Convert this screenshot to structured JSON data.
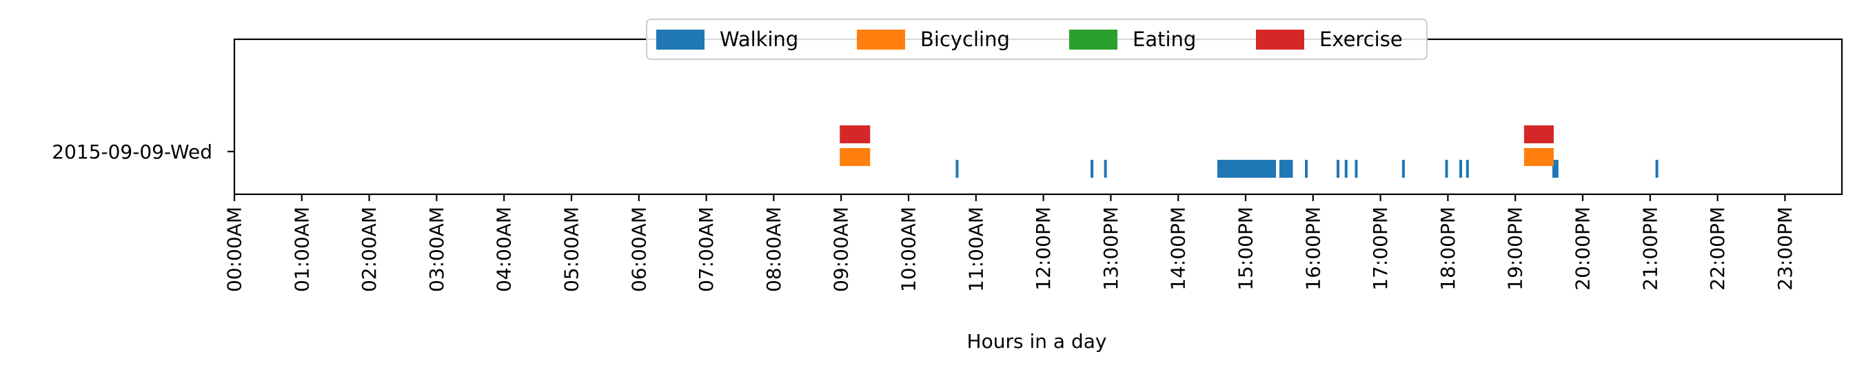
{
  "chart_data": {
    "type": "timeline",
    "title": "",
    "xlabel": "Hours in a day",
    "ylabel": "",
    "xlim": [
      0,
      24
    ],
    "categories": [
      "2015-09-09-Wed"
    ],
    "x_tick_labels": [
      "00:00AM",
      "01:00AM",
      "02:00AM",
      "03:00AM",
      "04:00AM",
      "05:00AM",
      "06:00AM",
      "07:00AM",
      "08:00AM",
      "09:00AM",
      "10:00AM",
      "11:00AM",
      "12:00PM",
      "13:00PM",
      "14:00PM",
      "15:00PM",
      "16:00PM",
      "17:00PM",
      "18:00PM",
      "19:00PM",
      "20:00PM",
      "21:00PM",
      "22:00PM",
      "23:00PM"
    ],
    "legend_position": "top-center",
    "grid": false,
    "series": [
      {
        "name": "Walking",
        "color": "#1f77b4",
        "intervals": [
          [
            10.7,
            10.74
          ],
          [
            12.7,
            12.74
          ],
          [
            12.9,
            12.94
          ],
          [
            14.58,
            15.45
          ],
          [
            15.5,
            15.7
          ],
          [
            15.88,
            15.92
          ],
          [
            16.35,
            16.39
          ],
          [
            16.47,
            16.51
          ],
          [
            16.62,
            16.66
          ],
          [
            17.32,
            17.36
          ],
          [
            17.96,
            18.0
          ],
          [
            18.17,
            18.21
          ],
          [
            18.27,
            18.31
          ],
          [
            19.55,
            19.64
          ],
          [
            21.08,
            21.12
          ]
        ]
      },
      {
        "name": "Bicycling",
        "color": "#ff7f0e",
        "intervals": [
          [
            8.98,
            9.43
          ],
          [
            19.13,
            19.57
          ]
        ]
      },
      {
        "name": "Eating",
        "color": "#2ca02c",
        "intervals": []
      },
      {
        "name": "Exercise",
        "color": "#d62728",
        "intervals": [
          [
            8.98,
            9.43
          ],
          [
            19.13,
            19.57
          ]
        ]
      }
    ]
  }
}
